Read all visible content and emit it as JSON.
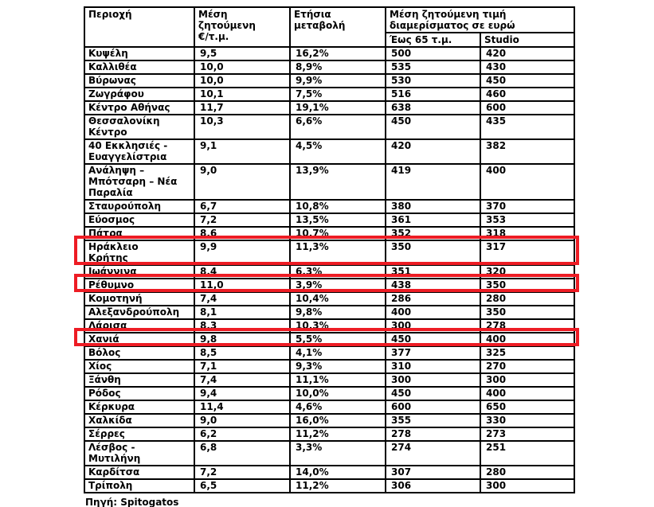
{
  "source_label": "Πηγή: Spitogatos",
  "colors": {
    "highlight_border": "#ed1c24",
    "table_border": "#000000",
    "text": "#000000"
  },
  "table": {
    "columns": [
      "Περιοχή",
      "Μέση\nζητούμενη\n€/τ.μ.",
      "Ετήσια\nμεταβολή"
    ],
    "group_header": "Μέση ζητούμενη τιμή\nδιαμερίσματος σε ευρώ",
    "sub_columns": [
      "Έως 65 τ.μ.",
      "Studio"
    ],
    "rows": [
      {
        "region": "Κυψέλη",
        "price_per_sqm": "9,5",
        "annual_change": "16,2%",
        "up_to_65": "500",
        "studio": "420",
        "highlighted": false
      },
      {
        "region": "Καλλιθέα",
        "price_per_sqm": "10,0",
        "annual_change": "8,9%",
        "up_to_65": "535",
        "studio": "430",
        "highlighted": false
      },
      {
        "region": "Βύρωνας",
        "price_per_sqm": "10,0",
        "annual_change": "9,9%",
        "up_to_65": "530",
        "studio": "450",
        "highlighted": false
      },
      {
        "region": "Ζωγράφου",
        "price_per_sqm": "10,1",
        "annual_change": "7,5%",
        "up_to_65": "516",
        "studio": "460",
        "highlighted": false
      },
      {
        "region": "Κέντρο Αθήνας",
        "price_per_sqm": "11,7",
        "annual_change": "19,1%",
        "up_to_65": "638",
        "studio": "600",
        "highlighted": false
      },
      {
        "region": "Θεσσαλονίκη\nΚέντρο",
        "price_per_sqm": "10,3",
        "annual_change": "6,6%",
        "up_to_65": "450",
        "studio": "435",
        "highlighted": false
      },
      {
        "region": "40 Εκκλησιές -\nΕυαγγελίστρια",
        "price_per_sqm": "9,1",
        "annual_change": "4,5%",
        "up_to_65": "420",
        "studio": "382",
        "highlighted": false
      },
      {
        "region": "Ανάληψη –\nΜπότσαρη – Νέα\nΠαραλία",
        "price_per_sqm": "9,0",
        "annual_change": "13,9%",
        "up_to_65": "419",
        "studio": "400",
        "highlighted": false
      },
      {
        "region": "Σταυρούπολη",
        "price_per_sqm": "6,7",
        "annual_change": "10,8%",
        "up_to_65": "380",
        "studio": "370",
        "highlighted": false
      },
      {
        "region": "Εύοσμος",
        "price_per_sqm": "7,2",
        "annual_change": "13,5%",
        "up_to_65": "361",
        "studio": "353",
        "highlighted": false
      },
      {
        "region": "Πάτρα",
        "price_per_sqm": "8,6",
        "annual_change": "10,7%",
        "up_to_65": "352",
        "studio": "318",
        "highlighted": false
      },
      {
        "region": "Ηράκλειο\nΚρήτης",
        "price_per_sqm": "9,9",
        "annual_change": "11,3%",
        "up_to_65": "350",
        "studio": "317",
        "highlighted": true
      },
      {
        "region": "Ιωάννινα",
        "price_per_sqm": "8,4",
        "annual_change": "6,3%",
        "up_to_65": "351",
        "studio": "320",
        "highlighted": false
      },
      {
        "region": "Ρέθυμνο",
        "price_per_sqm": "11,0",
        "annual_change": "3,9%",
        "up_to_65": "438",
        "studio": "350",
        "highlighted": true
      },
      {
        "region": "Κομοτηνή",
        "price_per_sqm": "7,4",
        "annual_change": "10,4%",
        "up_to_65": "286",
        "studio": "280",
        "highlighted": false
      },
      {
        "region": "Αλεξανδρούπολη",
        "price_per_sqm": "8,1",
        "annual_change": "9,8%",
        "up_to_65": "400",
        "studio": "350",
        "highlighted": false
      },
      {
        "region": "Λάρισα",
        "price_per_sqm": "8,3",
        "annual_change": "10,3%",
        "up_to_65": "300",
        "studio": "278",
        "highlighted": false
      },
      {
        "region": "Χανιά",
        "price_per_sqm": "9,8",
        "annual_change": "5,5%",
        "up_to_65": "450",
        "studio": "400",
        "highlighted": true
      },
      {
        "region": "Βόλος",
        "price_per_sqm": "8,5",
        "annual_change": "4,1%",
        "up_to_65": "377",
        "studio": "325",
        "highlighted": false
      },
      {
        "region": "Χίος",
        "price_per_sqm": "7,1",
        "annual_change": "9,3%",
        "up_to_65": "310",
        "studio": "270",
        "highlighted": false
      },
      {
        "region": "Ξάνθη",
        "price_per_sqm": "7,4",
        "annual_change": "11,1%",
        "up_to_65": "300",
        "studio": "300",
        "highlighted": false
      },
      {
        "region": "Ρόδος",
        "price_per_sqm": "9,4",
        "annual_change": "10,0%",
        "up_to_65": "450",
        "studio": "400",
        "highlighted": false
      },
      {
        "region": "Κέρκυρα",
        "price_per_sqm": "11,4",
        "annual_change": "4,6%",
        "up_to_65": "600",
        "studio": "650",
        "highlighted": false
      },
      {
        "region": "Χαλκίδα",
        "price_per_sqm": "9,0",
        "annual_change": "16,0%",
        "up_to_65": "355",
        "studio": "330",
        "highlighted": false
      },
      {
        "region": "Σέρρες",
        "price_per_sqm": "6,2",
        "annual_change": "11,2%",
        "up_to_65": "278",
        "studio": "273",
        "highlighted": false
      },
      {
        "region": "Λέσβος -\nΜυτιλήνη",
        "price_per_sqm": "6,8",
        "annual_change": "3,3%",
        "up_to_65": "274",
        "studio": "251",
        "highlighted": false
      },
      {
        "region": "Καρδίτσα",
        "price_per_sqm": "7,2",
        "annual_change": "14,0%",
        "up_to_65": "307",
        "studio": "280",
        "highlighted": false
      },
      {
        "region": "Τρίπολη",
        "price_per_sqm": "6,5",
        "annual_change": "11,2%",
        "up_to_65": "306",
        "studio": "300",
        "highlighted": false
      }
    ]
  }
}
